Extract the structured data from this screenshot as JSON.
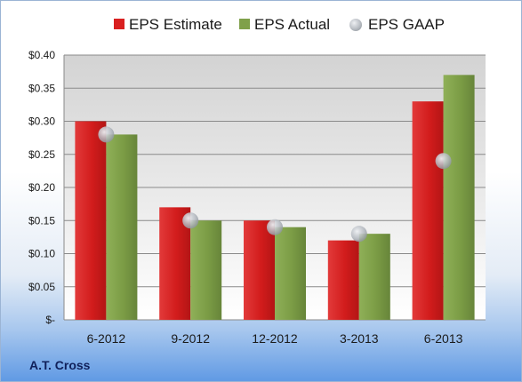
{
  "chart_data": {
    "type": "bar",
    "categories": [
      "6-2012",
      "9-2012",
      "12-2012",
      "3-2013",
      "6-2013"
    ],
    "series": [
      {
        "name": "EPS Estimate",
        "type": "bar",
        "color": "#d92020",
        "values": [
          0.3,
          0.17,
          0.15,
          0.12,
          0.33
        ]
      },
      {
        "name": "EPS Actual",
        "type": "bar",
        "color": "#7fa04a",
        "values": [
          0.28,
          0.15,
          0.14,
          0.13,
          0.37
        ]
      },
      {
        "name": "EPS GAAP",
        "type": "scatter",
        "color": "#a8aeb6",
        "values": [
          0.28,
          0.15,
          0.14,
          0.13,
          0.24
        ]
      }
    ],
    "ylim": [
      0,
      0.4
    ],
    "yticks": [
      0,
      0.05,
      0.1,
      0.15,
      0.2,
      0.25,
      0.3,
      0.35,
      0.4
    ],
    "ytick_labels": [
      "$-",
      "$0.05",
      "$0.10",
      "$0.15",
      "$0.20",
      "$0.25",
      "$0.30",
      "$0.35",
      "$0.40"
    ],
    "grid": true,
    "legend": "top"
  },
  "company": "A.T. Cross"
}
